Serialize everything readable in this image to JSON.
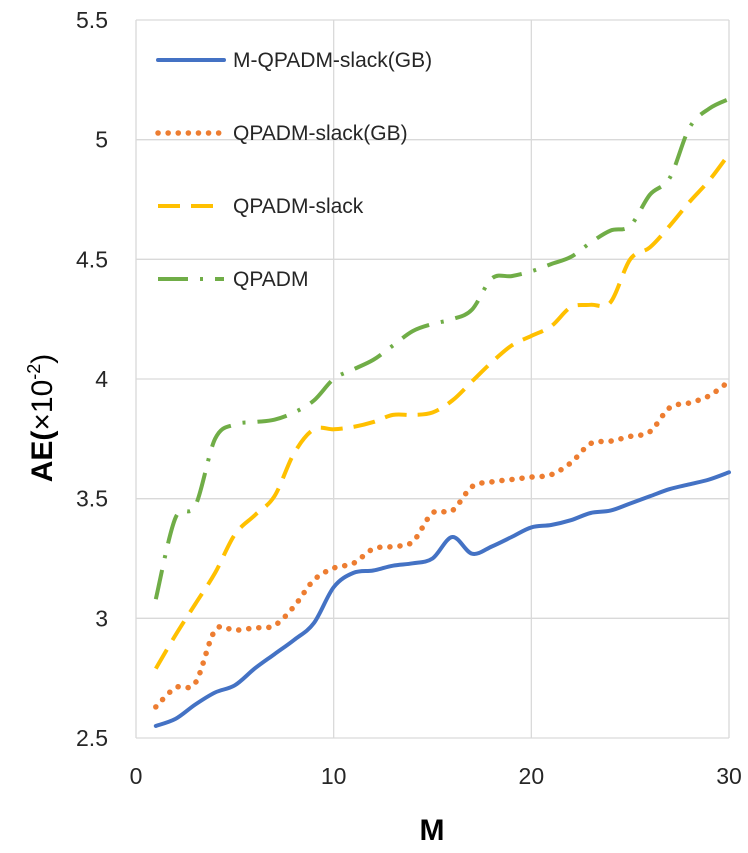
{
  "chart_data": {
    "type": "line",
    "title": "",
    "xlabel": "M",
    "ylabel_prefix": "AE(",
    "ylabel_scale": "×10",
    "ylabel_exponent": "-2",
    "ylabel_suffix": ")",
    "xlim": [
      0,
      30
    ],
    "ylim": [
      2.5,
      5.5
    ],
    "xticks": [
      0,
      10,
      20,
      30
    ],
    "yticks": [
      2.5,
      3,
      3.5,
      4,
      4.5,
      5,
      5.5
    ],
    "xtick_labels": [
      "0",
      "10",
      "20",
      "30"
    ],
    "ytick_labels": [
      "2.5",
      "3",
      "3.5",
      "4",
      "4.5",
      "5",
      "5.5"
    ],
    "grid": true,
    "legend_position": "top-left",
    "series": [
      {
        "name": "M-QPADM-slack(GB)",
        "color": "#4472C4",
        "style": "solid",
        "x": [
          1,
          2,
          3,
          4,
          5,
          6,
          7,
          8,
          9,
          10,
          11,
          12,
          13,
          14,
          15,
          16,
          17,
          18,
          19,
          20,
          21,
          22,
          23,
          24,
          25,
          26,
          27,
          28,
          29,
          30
        ],
        "values": [
          2.55,
          2.58,
          2.64,
          2.69,
          2.72,
          2.79,
          2.85,
          2.91,
          2.98,
          3.13,
          3.19,
          3.2,
          3.22,
          3.23,
          3.25,
          3.34,
          3.27,
          3.3,
          3.34,
          3.38,
          3.39,
          3.41,
          3.44,
          3.45,
          3.48,
          3.51,
          3.54,
          3.56,
          3.58,
          3.61
        ]
      },
      {
        "name": "QPADM-slack(GB)",
        "color": "#ED7D31",
        "style": "dotted",
        "x": [
          1,
          2,
          3,
          4,
          5,
          6,
          7,
          8,
          9,
          10,
          11,
          12,
          13,
          14,
          15,
          16,
          17,
          18,
          19,
          20,
          21,
          22,
          23,
          24,
          25,
          26,
          27,
          28,
          29,
          30
        ],
        "values": [
          2.63,
          2.71,
          2.73,
          2.95,
          2.95,
          2.96,
          2.97,
          3.05,
          3.16,
          3.21,
          3.23,
          3.29,
          3.3,
          3.32,
          3.44,
          3.45,
          3.55,
          3.57,
          3.58,
          3.59,
          3.6,
          3.65,
          3.73,
          3.74,
          3.76,
          3.78,
          3.88,
          3.9,
          3.93,
          3.99
        ]
      },
      {
        "name": "QPADM-slack",
        "color": "#FFC000",
        "style": "dashed",
        "x": [
          1,
          2,
          3,
          4,
          5,
          6,
          7,
          8,
          9,
          10,
          11,
          12,
          13,
          14,
          15,
          16,
          17,
          18,
          19,
          20,
          21,
          22,
          23,
          24,
          25,
          26,
          27,
          28,
          29,
          30
        ],
        "values": [
          2.79,
          2.93,
          3.06,
          3.19,
          3.35,
          3.43,
          3.51,
          3.69,
          3.79,
          3.79,
          3.8,
          3.82,
          3.85,
          3.85,
          3.86,
          3.91,
          3.99,
          4.07,
          4.14,
          4.18,
          4.22,
          4.3,
          4.31,
          4.32,
          4.5,
          4.55,
          4.64,
          4.74,
          4.83,
          4.94
        ]
      },
      {
        "name": "QPADM",
        "color": "#70AD47",
        "style": "dash-dot",
        "x": [
          1,
          2,
          3,
          4,
          5,
          6,
          7,
          8,
          9,
          10,
          11,
          12,
          13,
          14,
          15,
          16,
          17,
          18,
          19,
          20,
          21,
          22,
          23,
          24,
          25,
          26,
          27,
          28,
          29,
          30
        ],
        "values": [
          3.08,
          3.42,
          3.47,
          3.75,
          3.81,
          3.82,
          3.83,
          3.86,
          3.91,
          4.0,
          4.04,
          4.08,
          4.14,
          4.2,
          4.23,
          4.25,
          4.29,
          4.42,
          4.43,
          4.45,
          4.48,
          4.51,
          4.57,
          4.62,
          4.64,
          4.77,
          4.84,
          5.05,
          5.13,
          5.17
        ]
      }
    ]
  }
}
